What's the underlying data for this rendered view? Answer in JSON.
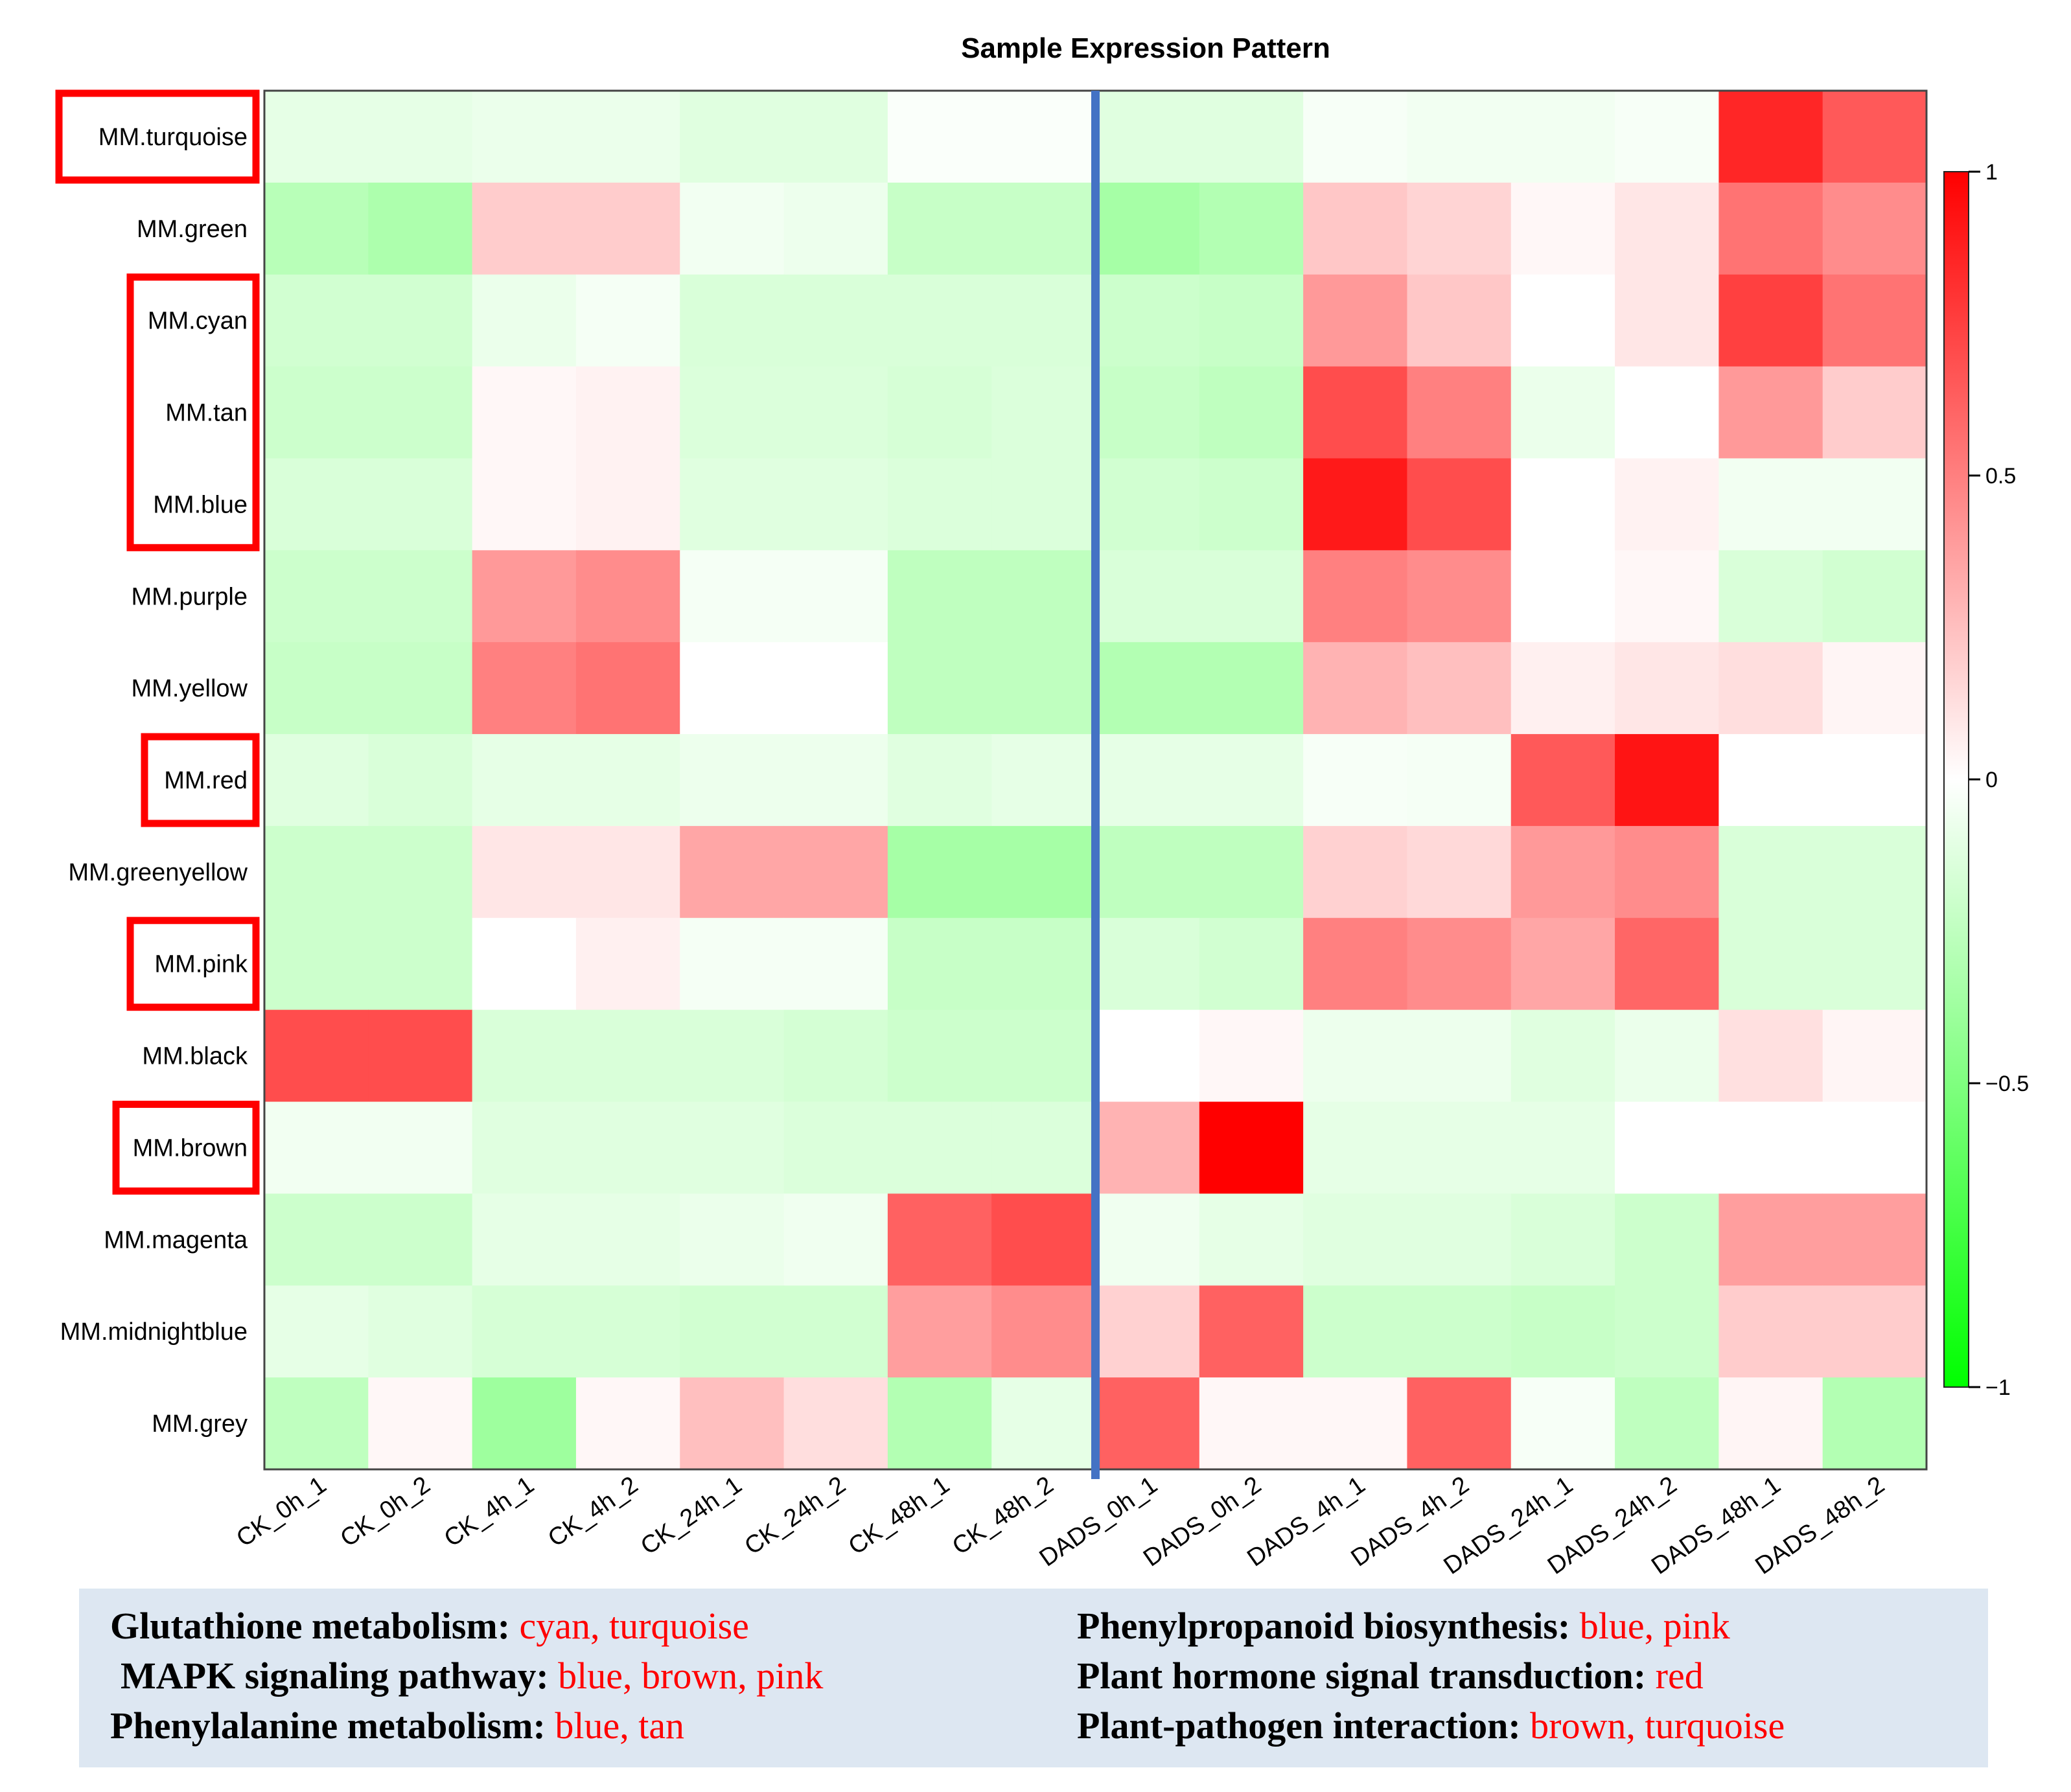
{
  "chart_data": {
    "type": "heatmap",
    "title": "Sample Expression Pattern",
    "rows": [
      "MM.turquoise",
      "MM.green",
      "MM.cyan",
      "MM.tan",
      "MM.blue",
      "MM.purple",
      "MM.yellow",
      "MM.red",
      "MM.greenyellow",
      "MM.pink",
      "MM.black",
      "MM.brown",
      "MM.magenta",
      "MM.midnightblue",
      "MM.grey"
    ],
    "highlighted_rows": [
      "MM.turquoise",
      "MM.cyan",
      "MM.tan",
      "MM.blue",
      "MM.red",
      "MM.pink",
      "MM.brown"
    ],
    "columns": [
      "CK_0h_1",
      "CK_0h_2",
      "CK_4h_1",
      "CK_4h_2",
      "CK_24h_1",
      "CK_24h_2",
      "CK_48h_1",
      "CK_48h_2",
      "DADS_0h_1",
      "DADS_0h_2",
      "DADS_4h_1",
      "DADS_4h_2",
      "DADS_24h_1",
      "DADS_24h_2",
      "DADS_48h_1",
      "DADS_48h_2"
    ],
    "values": [
      [
        -0.1,
        -0.1,
        -0.08,
        -0.08,
        -0.12,
        -0.12,
        -0.02,
        -0.02,
        -0.12,
        -0.12,
        -0.03,
        -0.05,
        -0.05,
        -0.03,
        0.85,
        0.65
      ],
      [
        -0.28,
        -0.32,
        0.2,
        0.2,
        -0.05,
        -0.07,
        -0.22,
        -0.22,
        -0.35,
        -0.3,
        0.22,
        0.17,
        0.03,
        0.1,
        0.55,
        0.45
      ],
      [
        -0.18,
        -0.18,
        -0.08,
        -0.04,
        -0.15,
        -0.15,
        -0.15,
        -0.15,
        -0.2,
        -0.22,
        0.4,
        0.22,
        0.0,
        0.1,
        0.75,
        0.55
      ],
      [
        -0.2,
        -0.2,
        0.03,
        0.05,
        -0.14,
        -0.14,
        -0.16,
        -0.14,
        -0.22,
        -0.25,
        0.7,
        0.5,
        -0.08,
        0.0,
        0.4,
        0.2
      ],
      [
        -0.15,
        -0.15,
        0.03,
        0.05,
        -0.12,
        -0.12,
        -0.14,
        -0.14,
        -0.18,
        -0.2,
        0.9,
        0.7,
        0.0,
        0.05,
        -0.05,
        -0.05
      ],
      [
        -0.2,
        -0.2,
        0.4,
        0.45,
        -0.04,
        -0.04,
        -0.25,
        -0.25,
        -0.15,
        -0.15,
        0.5,
        0.45,
        0.0,
        0.03,
        -0.15,
        -0.18
      ],
      [
        -0.22,
        -0.22,
        0.5,
        0.55,
        0.0,
        0.0,
        -0.25,
        -0.25,
        -0.3,
        -0.3,
        0.3,
        0.25,
        0.06,
        0.1,
        0.13,
        0.04
      ],
      [
        -0.12,
        -0.15,
        -0.1,
        -0.1,
        -0.07,
        -0.07,
        -0.12,
        -0.1,
        -0.1,
        -0.1,
        -0.03,
        -0.04,
        0.65,
        0.92,
        0.0,
        0.0
      ],
      [
        -0.2,
        -0.2,
        0.1,
        0.1,
        0.35,
        0.35,
        -0.35,
        -0.35,
        -0.25,
        -0.25,
        0.18,
        0.15,
        0.4,
        0.45,
        -0.15,
        -0.15
      ],
      [
        -0.2,
        -0.2,
        0.0,
        0.06,
        -0.04,
        -0.04,
        -0.22,
        -0.22,
        -0.15,
        -0.18,
        0.5,
        0.45,
        0.35,
        0.6,
        -0.15,
        -0.15
      ],
      [
        0.7,
        0.7,
        -0.15,
        -0.15,
        -0.15,
        -0.17,
        -0.2,
        -0.2,
        0.0,
        0.03,
        -0.07,
        -0.07,
        -0.12,
        -0.08,
        0.12,
        0.04
      ],
      [
        -0.05,
        -0.05,
        -0.12,
        -0.12,
        -0.12,
        -0.14,
        -0.14,
        -0.14,
        0.3,
        1.0,
        -0.1,
        -0.1,
        -0.1,
        0.0,
        0.0,
        0.0
      ],
      [
        -0.2,
        -0.2,
        -0.1,
        -0.1,
        -0.08,
        -0.06,
        0.62,
        0.7,
        -0.06,
        -0.1,
        -0.12,
        -0.12,
        -0.15,
        -0.2,
        0.38,
        0.38
      ],
      [
        -0.1,
        -0.12,
        -0.16,
        -0.16,
        -0.18,
        -0.18,
        0.38,
        0.45,
        0.18,
        0.62,
        -0.2,
        -0.2,
        -0.22,
        -0.2,
        0.2,
        0.2
      ],
      [
        -0.25,
        0.03,
        -0.38,
        0.03,
        0.25,
        0.13,
        -0.3,
        -0.1,
        0.62,
        0.03,
        0.03,
        0.62,
        -0.03,
        -0.25,
        0.04,
        -0.3
      ]
    ],
    "zlim": [
      -1,
      1
    ],
    "colorbar_ticks": [
      1,
      0.5,
      0,
      -0.5,
      -1
    ],
    "colorbar_tick_labels": [
      "1",
      "0.5",
      "0",
      "−0.5",
      "−1"
    ],
    "colors": {
      "low": "#00ff00",
      "mid": "#ffffff",
      "high": "#ff0000",
      "divider": "#4472c4",
      "highlight_box": "#ff0000"
    },
    "divider_after_column": "CK_48h_2"
  },
  "annotations": {
    "left": [
      {
        "label": "Glutathione metabolism:",
        "modules": "cyan, turquoise"
      },
      {
        "label": "MAPK signaling pathway:",
        "modules": "blue, brown, pink"
      },
      {
        "label": "Phenylalanine metabolism:",
        "modules": "blue, tan"
      }
    ],
    "right": [
      {
        "label": "Phenylpropanoid biosynthesis:",
        "modules": "blue, pink"
      },
      {
        "label": "Plant hormone signal transduction:",
        "modules": "red"
      },
      {
        "label": "Plant-pathogen interaction:",
        "modules": "brown, turquoise"
      }
    ]
  }
}
